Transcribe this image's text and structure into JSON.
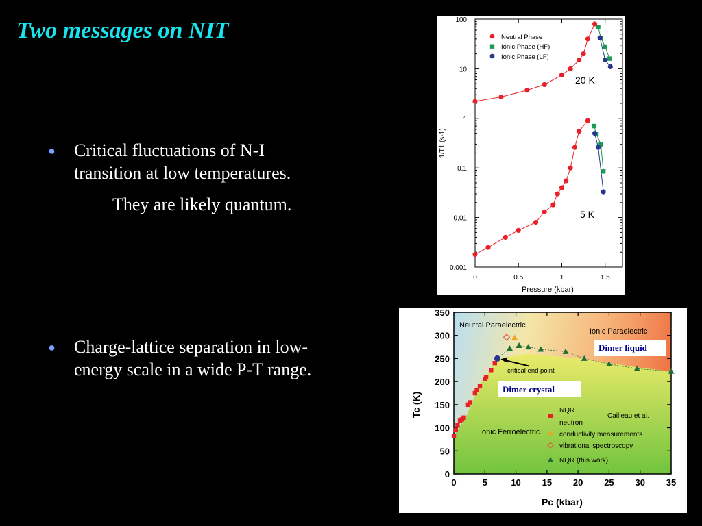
{
  "slide": {
    "title": "Two messages on NIT",
    "bullets": [
      {
        "lines": [
          "Critical fluctuations of N-I",
          "transition at low temperatures."
        ],
        "sub": "They are likely quantum."
      },
      {
        "lines": [
          "Charge-lattice separation in low-",
          "energy scale in a wide P-T range."
        ]
      }
    ]
  },
  "colors": {
    "title": "#19e3ef",
    "bullet_dot": "#7aa0ff",
    "neutral_phase": "#e8202a",
    "ionic_hf": "#1a9a55",
    "ionic_lf": "#2a3590",
    "nqr": "#e8202a",
    "conductivity": "#f2a51a",
    "vibrational": "#e05a3a",
    "nqr_this_work": "#1e6e3a"
  },
  "chart_data": [
    {
      "type": "scatter",
      "yscale": "log",
      "xlabel": "Pressure (kbar)",
      "ylabel": "1/T1 (s-1)",
      "xlim": [
        0,
        1.7
      ],
      "ylim": [
        0.001,
        100
      ],
      "xticks": [
        0,
        0.5,
        1,
        1.5
      ],
      "xtick_labels": [
        "0",
        "0.5",
        "1",
        "1.5"
      ],
      "yticks": [
        0.001,
        0.01,
        0.1,
        1,
        10,
        100
      ],
      "ytick_labels": [
        "0.001",
        "0.01",
        "0.1",
        "1",
        "10",
        "100"
      ],
      "legend": {
        "position": "top-left",
        "entries": [
          "Neutral Phase",
          "Ionic Phase (HF)",
          "Ionic Phase (LF)"
        ]
      },
      "annotations": [
        "20 K",
        "5 K"
      ],
      "series": [
        {
          "name": "Neutral Phase",
          "group": "20 K",
          "marker": "circle",
          "color": "#e8202a",
          "connected": true,
          "x": [
            0,
            0.3,
            0.6,
            0.8,
            1.0,
            1.1,
            1.2,
            1.25,
            1.3,
            1.38
          ],
          "y": [
            2.2,
            2.7,
            3.7,
            4.8,
            7.5,
            10,
            15,
            20,
            40,
            80
          ]
        },
        {
          "name": "Ionic Phase (HF)",
          "group": "20 K",
          "marker": "square",
          "color": "#1a9a55",
          "connected": true,
          "x": [
            1.42,
            1.45,
            1.5,
            1.55
          ],
          "y": [
            70,
            42,
            28,
            16
          ]
        },
        {
          "name": "Ionic Phase (LF)",
          "group": "20 K",
          "marker": "circle",
          "color": "#2a3590",
          "connected": true,
          "x": [
            1.44,
            1.5,
            1.56
          ],
          "y": [
            42,
            15,
            11
          ]
        },
        {
          "name": "Neutral Phase",
          "group": "5 K",
          "marker": "circle",
          "color": "#e8202a",
          "connected": true,
          "x": [
            0,
            0.15,
            0.35,
            0.5,
            0.7,
            0.8,
            0.9,
            0.95,
            1.0,
            1.05,
            1.1,
            1.15,
            1.2,
            1.3
          ],
          "y": [
            0.0018,
            0.0025,
            0.004,
            0.0055,
            0.008,
            0.013,
            0.018,
            0.03,
            0.04,
            0.055,
            0.1,
            0.26,
            0.55,
            0.9
          ]
        },
        {
          "name": "Ionic Phase (HF)",
          "group": "5 K",
          "marker": "square",
          "color": "#1a9a55",
          "connected": true,
          "x": [
            1.37,
            1.4,
            1.45,
            1.48
          ],
          "y": [
            0.7,
            0.48,
            0.3,
            0.085
          ]
        },
        {
          "name": "Ionic Phase (LF)",
          "group": "5 K",
          "marker": "circle",
          "color": "#2a3590",
          "connected": true,
          "x": [
            1.38,
            1.42,
            1.48
          ],
          "y": [
            0.5,
            0.26,
            0.033
          ]
        }
      ]
    },
    {
      "type": "scatter",
      "xlabel": "Pc (kbar)",
      "ylabel": "Tc (K)",
      "xlim": [
        0,
        35
      ],
      "ylim": [
        0,
        350
      ],
      "xticks": [
        0,
        5,
        10,
        15,
        20,
        25,
        30,
        35
      ],
      "yticks": [
        0,
        50,
        100,
        150,
        200,
        250,
        300,
        350
      ],
      "regions": [
        "Neutral Paraelectric",
        "Ionic Paraelectric",
        "Ionic Ferroelectric"
      ],
      "annotations": [
        "critical end point",
        "Cailleau et al.",
        "Dimer liquid",
        "Dimer crystal"
      ],
      "legend": {
        "position": "bottom-center",
        "entries": [
          "NQR",
          "neutron",
          "conductivity measurements",
          "vibrational spectroscopy",
          "NQR (this work)"
        ]
      },
      "critical_end_point": {
        "x": 7,
        "y": 250
      },
      "series": [
        {
          "name": "NQR / neutron",
          "marker": "square",
          "color": "#e8202a",
          "x": [
            0,
            0.3,
            0.6,
            1.0,
            1.3,
            1.6,
            2.3,
            2.6,
            3.4,
            3.7,
            4.2,
            5.0,
            5.2,
            6.0,
            6.6
          ],
          "y": [
            82,
            95,
            105,
            115,
            118,
            122,
            150,
            155,
            175,
            182,
            190,
            205,
            210,
            225,
            240
          ]
        },
        {
          "name": "conductivity measurements",
          "marker": "triangle",
          "color": "#f2a51a",
          "x": [
            9.8
          ],
          "y": [
            295
          ]
        },
        {
          "name": "vibrational spectroscopy",
          "marker": "diamond-open",
          "color": "#e05a3a",
          "x": [
            8.5
          ],
          "y": [
            296
          ]
        },
        {
          "name": "NQR (this work)",
          "marker": "triangle",
          "color": "#1e6e3a",
          "x": [
            9,
            10.5,
            12,
            14,
            18,
            21,
            25,
            29.5,
            35
          ],
          "y": [
            272,
            278,
            275,
            270,
            265,
            250,
            238,
            228,
            222
          ]
        }
      ]
    }
  ]
}
